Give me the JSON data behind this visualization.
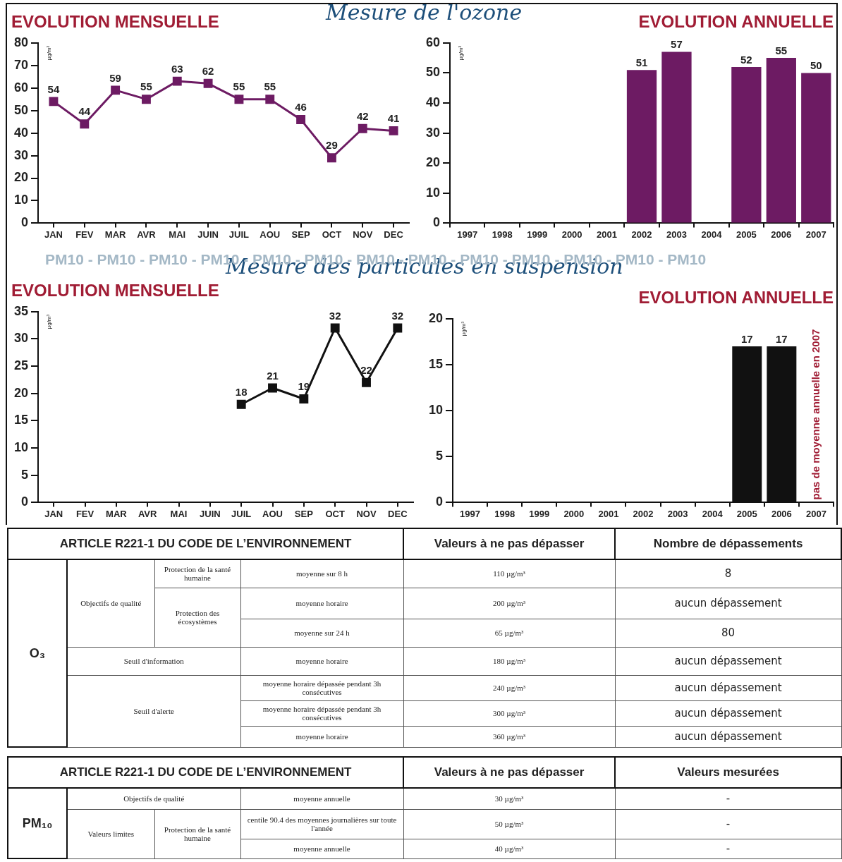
{
  "chart_data": [
    {
      "type": "line",
      "title": "EVOLUTION MENSUELLE",
      "subtitle": "Mesure de l'ozone",
      "ylabel": "µg/m³",
      "categories": [
        "JAN",
        "FEV",
        "MAR",
        "AVR",
        "MAI",
        "JUIN",
        "JUIL",
        "AOU",
        "SEP",
        "OCT",
        "NOV",
        "DEC"
      ],
      "series": [
        {
          "color": "#6d1b63",
          "values": [
            54,
            44,
            59,
            55,
            63,
            62,
            55,
            55,
            46,
            29,
            42,
            41
          ]
        }
      ],
      "ylim": [
        0,
        80
      ],
      "yticks": [
        0,
        10,
        20,
        30,
        40,
        50,
        60,
        70,
        80
      ],
      "marker": "square",
      "data_labels": true,
      "grid": false,
      "legend": false
    },
    {
      "type": "bar",
      "title": "EVOLUTION ANNUELLE",
      "ylabel": "µg/m³",
      "categories": [
        "1997",
        "1998",
        "1999",
        "2000",
        "2001",
        "2002",
        "2003",
        "2004",
        "2005",
        "2006",
        "2007"
      ],
      "series": [
        {
          "color": "#6d1b63",
          "values": [
            null,
            null,
            null,
            null,
            null,
            51,
            57,
            null,
            52,
            55,
            50
          ]
        }
      ],
      "ylim": [
        0,
        60
      ],
      "yticks": [
        0,
        10,
        20,
        30,
        40,
        50,
        60
      ],
      "data_labels": true,
      "grid": false,
      "legend": false
    },
    {
      "type": "line",
      "title": "EVOLUTION MENSUELLE",
      "subtitle": "Mesure des particules en suspension",
      "ylabel": "µg/m³",
      "annotations": [
        "PM10 - PM10 - PM10 - PM10 - PM10 - PM10 - PM10 - PM10 - PM10 - PM10 - PM10 - PM10 - PM10"
      ],
      "categories": [
        "JAN",
        "FEV",
        "MAR",
        "AVR",
        "MAI",
        "JUIN",
        "JUIL",
        "AOU",
        "SEP",
        "OCT",
        "NOV",
        "DEC"
      ],
      "series": [
        {
          "color": "#111111",
          "values": [
            null,
            null,
            null,
            null,
            null,
            null,
            18,
            21,
            19,
            32,
            22,
            32
          ]
        }
      ],
      "ylim": [
        0,
        35
      ],
      "yticks": [
        0,
        5,
        10,
        15,
        20,
        25,
        30,
        35
      ],
      "marker": "square",
      "data_labels": true,
      "grid": false,
      "legend": false
    },
    {
      "type": "bar",
      "title": "EVOLUTION ANNUELLE",
      "ylabel": "µg/m³",
      "annotations": [
        "pas de moyenne annuelle en 2007"
      ],
      "categories": [
        "1997",
        "1998",
        "1999",
        "2000",
        "2001",
        "2002",
        "2003",
        "2004",
        "2005",
        "2006",
        "2007"
      ],
      "series": [
        {
          "color": "#111111",
          "values": [
            null,
            null,
            null,
            null,
            null,
            null,
            null,
            null,
            17,
            17,
            null
          ]
        }
      ],
      "ylim": [
        0,
        20
      ],
      "yticks": [
        0,
        5,
        10,
        15,
        20
      ],
      "data_labels": true,
      "grid": false,
      "legend": false
    },
    {
      "type": "other",
      "annotations": [
        "ARTICLE R221-1 DU CODE DE L’ENVIRONNEMENT",
        "Valeurs à ne pas dépasser",
        "Nombre de dépassements",
        "O₃",
        "Objectifs de qualité",
        "Protection de la santé humaine",
        "moyenne sur 8 h",
        "110 µg/m³",
        "8",
        "Protection des écosystèmes",
        "moyenne horaire",
        "200 µg/m³",
        "aucun dépassement",
        "moyenne sur 24 h",
        "65 µg/m³",
        "80",
        "Seuil d'information",
        "moyenne horaire",
        "180 µg/m³",
        "aucun dépassement",
        "Seuil d'alerte",
        "moyenne horaire dépassée pendant 3h consécutives",
        "240 µg/m³",
        "aucun dépassement",
        "moyenne horaire dépassée pendant 3h consécutives",
        "300 µg/m³",
        "aucun dépassement",
        "moyenne horaire",
        "360 µg/m³",
        "aucun dépassement"
      ]
    },
    {
      "type": "other",
      "annotations": [
        "ARTICLE R221-1 DU CODE DE L’ENVIRONNEMENT",
        "Valeurs à ne pas dépasser",
        "Valeurs mesurées",
        "PM₁₀",
        "Objectifs de qualité",
        "moyenne annuelle",
        "30 µg/m³",
        "-",
        "Valeurs limites",
        "Protection de la santé humaine",
        "centile 90.4 des moyennes journalières sur toute l'année",
        "50 µg/m³",
        "-",
        "moyenne annuelle",
        "40 µg/m³",
        "-"
      ]
    }
  ]
}
